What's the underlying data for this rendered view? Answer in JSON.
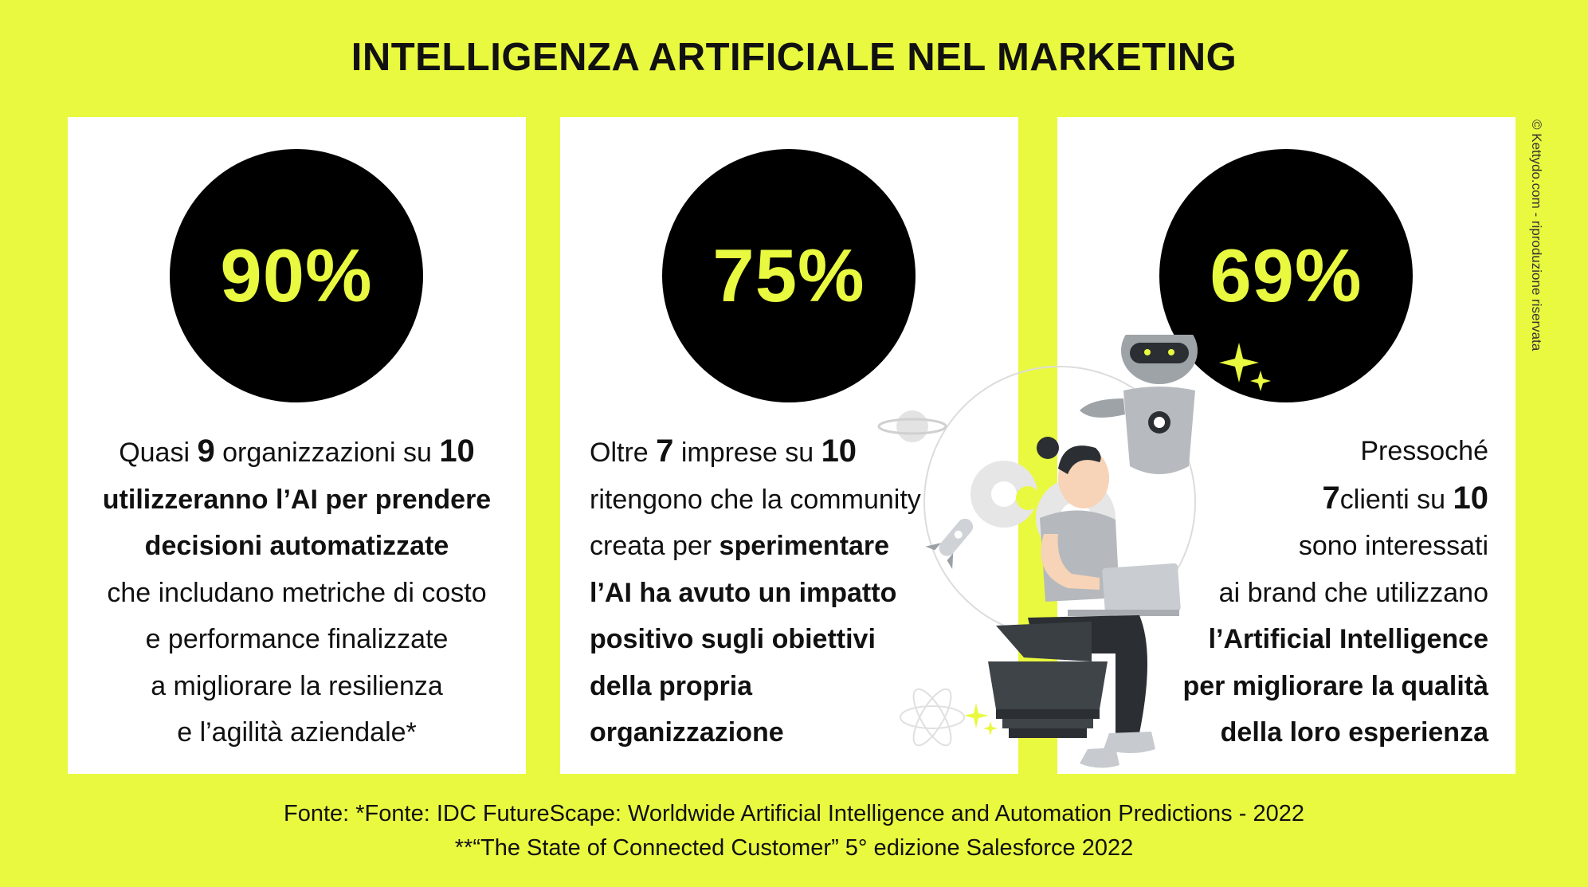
{
  "title": "INTELLIGENZA ARTIFICIALE NEL MARKETING",
  "watermark": "© Kettydo.com - riproduzione riservata",
  "cards": [
    {
      "percent": "90%",
      "lines": [
        [
          {
            "t": "Quasi ",
            "s": "n"
          },
          {
            "t": "9",
            "s": "num"
          },
          {
            "t": " organizzazioni su ",
            "s": "n"
          },
          {
            "t": "10",
            "s": "num"
          }
        ],
        [
          {
            "t": "utilizzeranno l’AI per prendere",
            "s": "b"
          }
        ],
        [
          {
            "t": "decisioni automatizzate",
            "s": "b"
          }
        ],
        [
          {
            "t": "che includano metriche di costo",
            "s": "n"
          }
        ],
        [
          {
            "t": "e performance finalizzate",
            "s": "n"
          }
        ],
        [
          {
            "t": "a migliorare la resilienza",
            "s": "n"
          }
        ],
        [
          {
            "t": "e l’agilità aziendale*",
            "s": "n"
          }
        ]
      ]
    },
    {
      "percent": "75%",
      "lines": [
        [
          {
            "t": "Oltre ",
            "s": "n"
          },
          {
            "t": "7",
            "s": "num"
          },
          {
            "t": " imprese su ",
            "s": "n"
          },
          {
            "t": "10",
            "s": "num"
          }
        ],
        [
          {
            "t": "ritengono che la community",
            "s": "n"
          }
        ],
        [
          {
            "t": "creata per ",
            "s": "n"
          },
          {
            "t": "sperimentare",
            "s": "b"
          }
        ],
        [
          {
            "t": "l’AI ha avuto un impatto",
            "s": "b"
          }
        ],
        [
          {
            "t": "positivo sugli obiettivi",
            "s": "b"
          }
        ],
        [
          {
            "t": "della propria",
            "s": "b"
          }
        ],
        [
          {
            "t": "organizzazione",
            "s": "b"
          }
        ]
      ]
    },
    {
      "percent": "69%",
      "lines": [
        [
          {
            "t": "Pressoché",
            "s": "n"
          }
        ],
        [
          {
            "t": "7",
            "s": "num"
          },
          {
            "t": "clienti su ",
            "s": "n"
          },
          {
            "t": "10",
            "s": "num"
          }
        ],
        [
          {
            "t": "sono interessati",
            "s": "n"
          }
        ],
        [
          {
            "t": "ai brand che utilizzano",
            "s": "n"
          }
        ],
        [
          {
            "t": "l’Artificial Intelligence",
            "s": "b"
          }
        ],
        [
          {
            "t": "per migliorare la qualità",
            "s": "b"
          }
        ],
        [
          {
            "t": "della loro esperienza",
            "s": "b"
          }
        ]
      ]
    }
  ],
  "footer": {
    "line1": "Fonte: *Fonte: IDC FutureScape: Worldwide Artificial Intelligence and Automation Predictions - 2022",
    "line2": "**“The State of Connected Customer” 5° edizione Salesforce 2022"
  },
  "colors": {
    "background": "#e9f93f",
    "accent": "#e9f93f",
    "circle": "#000000",
    "card": "#ffffff"
  },
  "icons": [
    "robot-icon",
    "person-with-laptop-icon",
    "rocket-icon",
    "planet-icon",
    "gear-icon",
    "sparkle-icon",
    "atom-icon"
  ]
}
